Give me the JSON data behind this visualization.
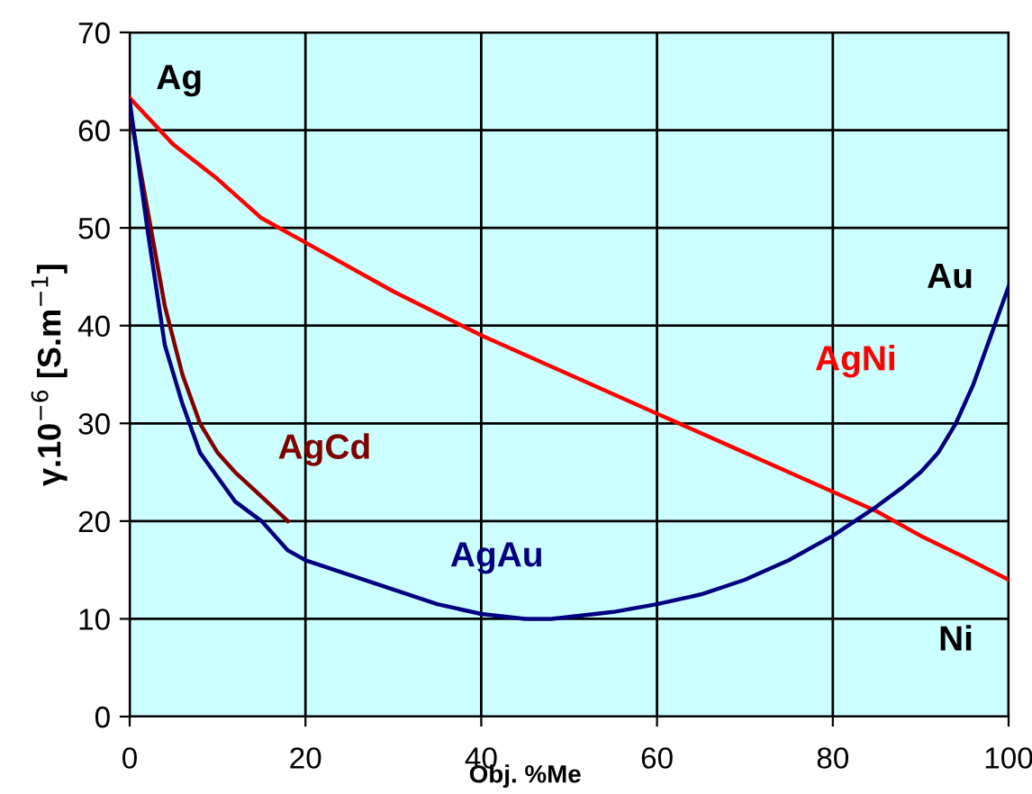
{
  "chart_data": {
    "type": "line",
    "xlabel": "Obj. %Me",
    "ylabel": "γ.10$^{−6}$ [S.m$^{−1}$]",
    "xlim": [
      0,
      100
    ],
    "ylim": [
      0,
      70
    ],
    "xticks": [
      0,
      20,
      40,
      60,
      80,
      100
    ],
    "yticks": [
      0,
      10,
      20,
      30,
      40,
      50,
      60,
      70
    ],
    "grid": true,
    "legend": false,
    "marker": "none",
    "line_style": "solid",
    "series": [
      {
        "name": "AgNi",
        "color": "#ff0000",
        "x": [
          0,
          5,
          10,
          15,
          20,
          30,
          40,
          50,
          60,
          70,
          80,
          85,
          90,
          95,
          100
        ],
        "values": [
          63.3,
          58.5,
          55,
          51,
          48.5,
          43.5,
          39,
          35,
          31,
          27,
          23,
          21,
          18.5,
          16.3,
          14
        ]
      },
      {
        "name": "AgCd",
        "color": "#800000",
        "x": [
          0,
          2,
          4,
          6,
          8,
          10,
          12,
          15,
          18
        ],
        "values": [
          62,
          52,
          42,
          35,
          30,
          27,
          25,
          22.5,
          20
        ]
      },
      {
        "name": "AgAu",
        "color": "#000080",
        "x": [
          0,
          2,
          4,
          6,
          8,
          10,
          12,
          15,
          18,
          20,
          25,
          30,
          35,
          40,
          45,
          48,
          55,
          60,
          65,
          70,
          75,
          80,
          85,
          88,
          90,
          92,
          94,
          96,
          98,
          100
        ],
        "values": [
          63,
          50,
          38,
          32,
          27,
          24.5,
          22,
          20,
          17,
          16,
          14.5,
          13,
          11.5,
          10.5,
          10,
          10,
          10.7,
          11.5,
          12.5,
          14,
          16,
          18.5,
          21.5,
          23.5,
          25,
          27,
          30,
          34,
          39,
          44
        ]
      }
    ],
    "annotations": [
      "Ag",
      "Au",
      "Ni"
    ]
  }
}
